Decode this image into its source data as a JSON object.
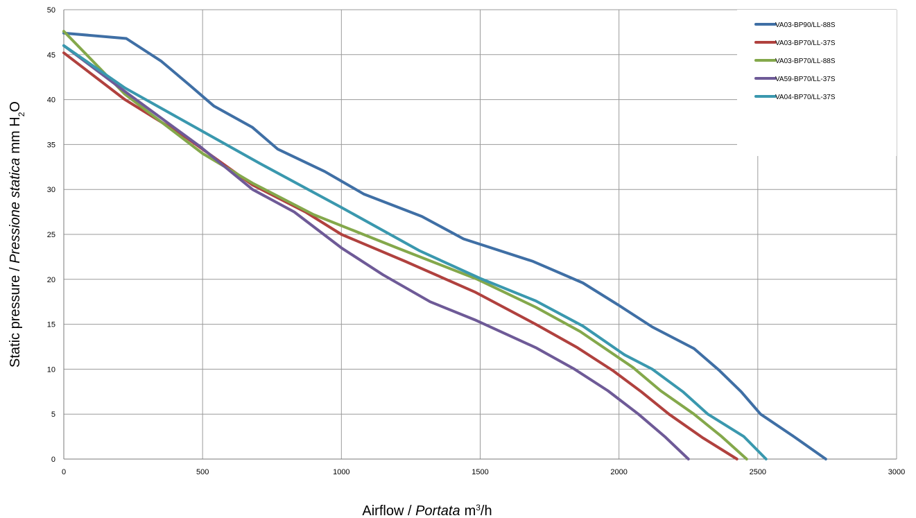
{
  "chart_data": {
    "type": "line",
    "xlim": [
      0,
      3000
    ],
    "ylim": [
      0,
      50
    ],
    "x_ticks": [
      0,
      500,
      1000,
      1500,
      2000,
      2500,
      3000
    ],
    "y_ticks": [
      0,
      5,
      10,
      15,
      20,
      25,
      30,
      35,
      40,
      45,
      50
    ],
    "grid": true,
    "legend_position": "top-right",
    "xlabel": {
      "main": "Airflow",
      "sep": " / ",
      "italic": "Portata",
      "unit_pre": "m",
      "unit_sup": "3",
      "unit_post": "/h"
    },
    "ylabel": {
      "main": "Static pressure",
      "sep": " / ",
      "italic": "Pressione statica",
      "unit_pre": "mm H",
      "unit_sub": "2",
      "unit_post": "O"
    },
    "series": [
      {
        "name": "VA03-BP90/LL-88S",
        "color": "#3f6fa5",
        "points": [
          [
            0,
            47.4
          ],
          [
            225,
            46.8
          ],
          [
            350,
            44.3
          ],
          [
            450,
            41.7
          ],
          [
            540,
            39.3
          ],
          [
            680,
            36.9
          ],
          [
            770,
            34.5
          ],
          [
            940,
            32.0
          ],
          [
            1080,
            29.5
          ],
          [
            1290,
            27.0
          ],
          [
            1440,
            24.5
          ],
          [
            1690,
            22.0
          ],
          [
            1870,
            19.6
          ],
          [
            2000,
            17.1
          ],
          [
            2120,
            14.7
          ],
          [
            2270,
            12.3
          ],
          [
            2360,
            9.9
          ],
          [
            2440,
            7.5
          ],
          [
            2510,
            5.0
          ],
          [
            2630,
            2.5
          ],
          [
            2745,
            0
          ]
        ]
      },
      {
        "name": "VA03-BP70/LL-37S",
        "color": "#b0413e",
        "points": [
          [
            0,
            45.2
          ],
          [
            220,
            40.0
          ],
          [
            440,
            35.8
          ],
          [
            680,
            30.5
          ],
          [
            870,
            27.5
          ],
          [
            1000,
            25.0
          ],
          [
            1230,
            22.0
          ],
          [
            1480,
            18.6
          ],
          [
            1700,
            15.0
          ],
          [
            1850,
            12.4
          ],
          [
            1980,
            9.8
          ],
          [
            2080,
            7.5
          ],
          [
            2180,
            5.0
          ],
          [
            2300,
            2.4
          ],
          [
            2425,
            0
          ]
        ]
      },
      {
        "name": "VA03-BP70/LL-88S",
        "color": "#84a84b",
        "points": [
          [
            0,
            47.6
          ],
          [
            220,
            40.6
          ],
          [
            500,
            34.0
          ],
          [
            680,
            30.7
          ],
          [
            900,
            27.2
          ],
          [
            1200,
            23.5
          ],
          [
            1490,
            20.0
          ],
          [
            1700,
            16.9
          ],
          [
            1860,
            14.2
          ],
          [
            2050,
            10.2
          ],
          [
            2150,
            7.6
          ],
          [
            2270,
            5.0
          ],
          [
            2370,
            2.5
          ],
          [
            2460,
            0
          ]
        ]
      },
      {
        "name": "VA59-BP70/LL-37S",
        "color": "#6e5a97",
        "points": [
          [
            0,
            46.0
          ],
          [
            220,
            40.9
          ],
          [
            490,
            34.8
          ],
          [
            680,
            30.0
          ],
          [
            830,
            27.5
          ],
          [
            1000,
            23.5
          ],
          [
            1150,
            20.5
          ],
          [
            1320,
            17.5
          ],
          [
            1480,
            15.5
          ],
          [
            1700,
            12.4
          ],
          [
            1840,
            10.0
          ],
          [
            1960,
            7.6
          ],
          [
            2070,
            5.0
          ],
          [
            2165,
            2.5
          ],
          [
            2250,
            0
          ]
        ]
      },
      {
        "name": "VA04-BP70/LL-37S",
        "color": "#3a98ae",
        "points": [
          [
            0,
            46.0
          ],
          [
            220,
            41.3
          ],
          [
            440,
            37.5
          ],
          [
            700,
            33.0
          ],
          [
            1000,
            28.0
          ],
          [
            1280,
            23.2
          ],
          [
            1500,
            20.1
          ],
          [
            1700,
            17.6
          ],
          [
            1870,
            14.8
          ],
          [
            2020,
            11.6
          ],
          [
            2120,
            10.0
          ],
          [
            2230,
            7.5
          ],
          [
            2320,
            5.0
          ],
          [
            2450,
            2.5
          ],
          [
            2530,
            0
          ]
        ]
      }
    ]
  }
}
